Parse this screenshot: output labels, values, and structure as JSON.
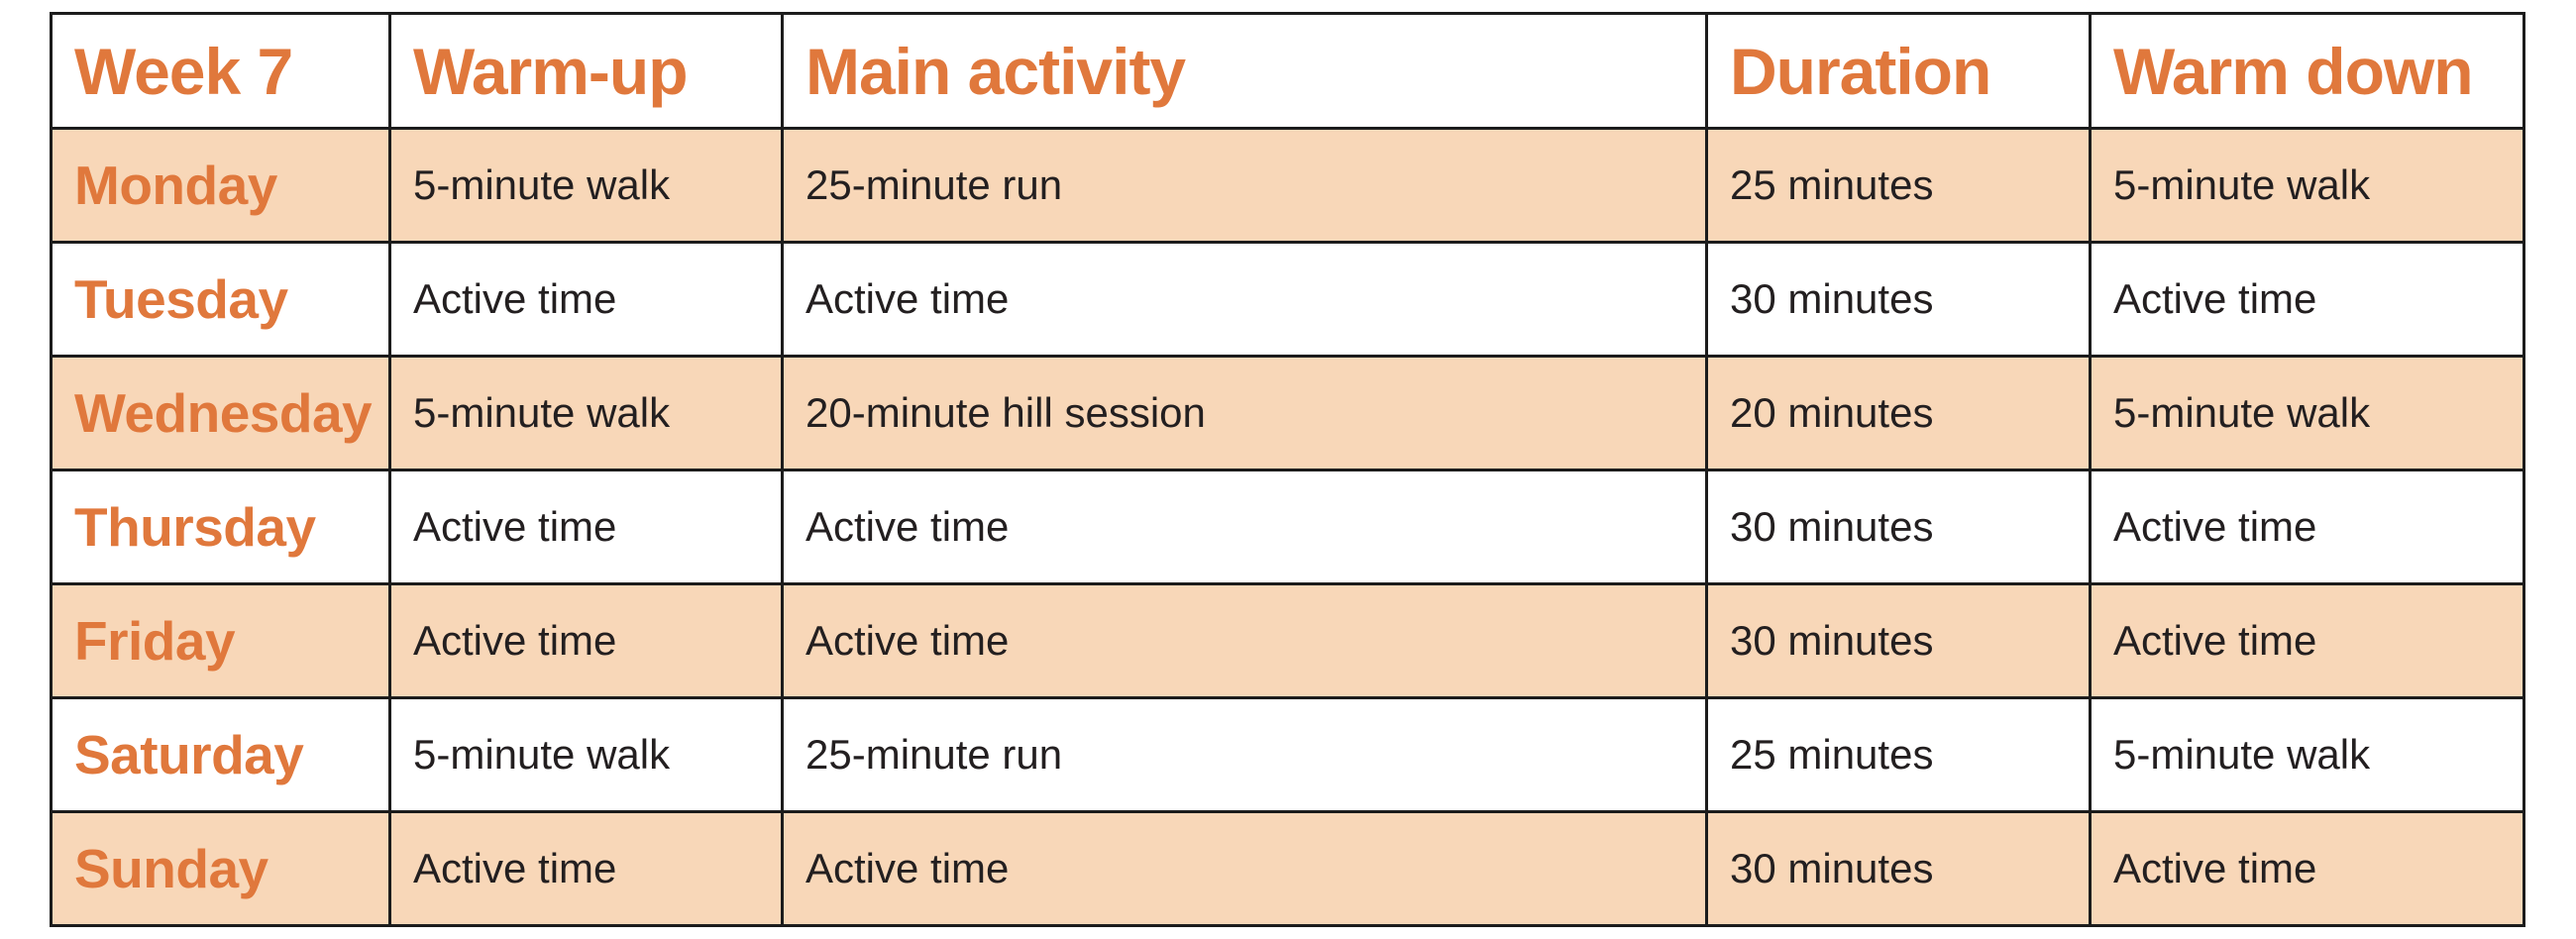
{
  "colors": {
    "accent_orange": "#e0783c",
    "row_alt_bg": "#f8d7b8",
    "body_text": "#231f20",
    "border": "#1c1c1c",
    "page_bg": "#ffffff"
  },
  "table": {
    "title_cell": "Week 7",
    "columns": [
      "Warm-up",
      "Main activity",
      "Duration",
      "Warm down"
    ],
    "rows": [
      {
        "day": "Monday",
        "warm_up": "5-minute walk",
        "main_activity": "25-minute run",
        "duration": "25 minutes",
        "warm_down": "5-minute walk"
      },
      {
        "day": "Tuesday",
        "warm_up": "Active time",
        "main_activity": "Active time",
        "duration": "30 minutes",
        "warm_down": "Active time"
      },
      {
        "day": "Wednesday",
        "warm_up": "5-minute walk",
        "main_activity": "20-minute hill session",
        "duration": "20 minutes",
        "warm_down": "5-minute walk"
      },
      {
        "day": "Thursday",
        "warm_up": "Active time",
        "main_activity": "Active time",
        "duration": "30 minutes",
        "warm_down": "Active time"
      },
      {
        "day": "Friday",
        "warm_up": "Active time",
        "main_activity": "Active time",
        "duration": "30 minutes",
        "warm_down": "Active time"
      },
      {
        "day": "Saturday",
        "warm_up": "5-minute walk",
        "main_activity": "25-minute run",
        "duration": "25 minutes",
        "warm_down": "5-minute walk"
      },
      {
        "day": "Sunday",
        "warm_up": "Active time",
        "main_activity": "Active time",
        "duration": "30 minutes",
        "warm_down": "Active time"
      }
    ]
  }
}
